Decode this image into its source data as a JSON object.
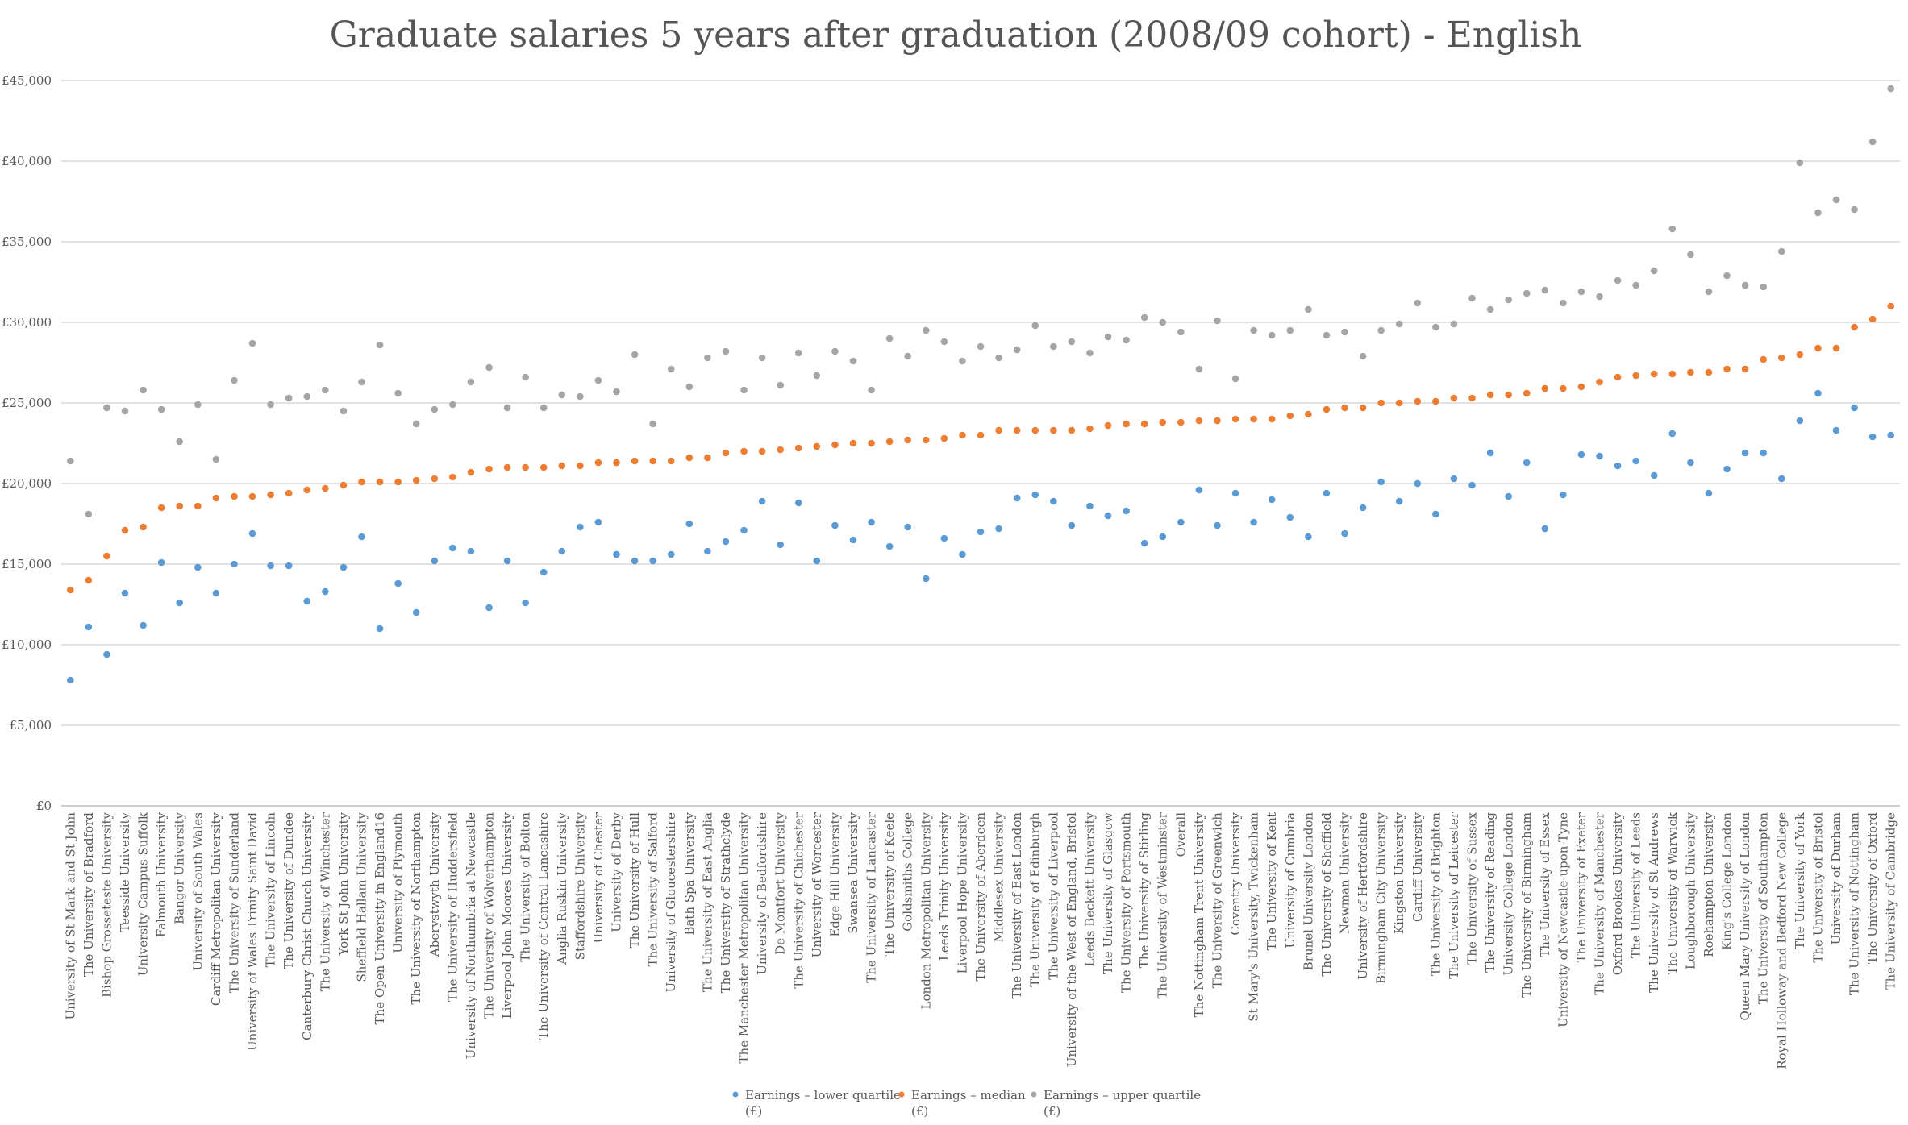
{
  "chart_data": {
    "type": "scatter",
    "title": "Graduate salaries 5 years after graduation (2008/09 cohort) - English",
    "xlabel": "",
    "ylabel": "",
    "ylim": [
      0,
      45000
    ],
    "yticks": [
      0,
      5000,
      10000,
      15000,
      20000,
      25000,
      30000,
      35000,
      40000,
      45000
    ],
    "ytick_labels": [
      "£0",
      "£5,000",
      "£10,000",
      "£15,000",
      "£20,000",
      "£25,000",
      "£30,000",
      "£35,000",
      "£40,000",
      "£45,000"
    ],
    "grid": true,
    "legend_position": "bottom-center",
    "categories": [
      "University of St Mark and St John",
      "The University of Bradford",
      "Bishop Grosseteste University",
      "Teesside University",
      "University Campus Suffolk",
      "Falmouth University",
      "Bangor University",
      "University of South Wales",
      "Cardiff Metropolitan University",
      "The University of Sunderland",
      "University of Wales Trinity Saint David",
      "The University of Lincoln",
      "The University of Dundee",
      "Canterbury Christ Church University",
      "The University of Winchester",
      "York St John University",
      "Sheffield Hallam University",
      "The Open University in England16",
      "University of Plymouth",
      "The University of Northampton",
      "Aberystwyth University",
      "The University of Huddersfield",
      "University of Northumbria at Newcastle",
      "The University of Wolverhampton",
      "Liverpool John Moores University",
      "The University of Bolton",
      "The University of Central Lancashire",
      "Anglia Ruskin University",
      "Staffordshire University",
      "University of Chester",
      "University of Derby",
      "The University of Hull",
      "The University of Salford",
      "University of Gloucestershire",
      "Bath Spa University",
      "The University of East Anglia",
      "The University of Strathclyde",
      "The Manchester Metropolitan University",
      "University of Bedfordshire",
      "De Montfort University",
      "The University of Chichester",
      "University of Worcester",
      "Edge Hill University",
      "Swansea University",
      "The University of Lancaster",
      "The University of Keele",
      "Goldsmiths College",
      "London Metropolitan University",
      "Leeds Trinity University",
      "Liverpool Hope University",
      "The University of Aberdeen",
      "Middlesex University",
      "The University of East London",
      "The University of Edinburgh",
      "The University of Liverpool",
      "University of the West of England, Bristol",
      "Leeds Beckett University",
      "The University of Glasgow",
      "The University of Portsmouth",
      "The University of Stirling",
      "The University of Westminster",
      "Overall",
      "The Nottingham Trent University",
      "The University of Greenwich",
      "Coventry University",
      "St Mary's University, Twickenham",
      "The University of Kent",
      "University of Cumbria",
      "Brunel University London",
      "The University of Sheffield",
      "Newman University",
      "University of Hertfordshire",
      "Birmingham City University",
      "Kingston University",
      "Cardiff University",
      "The University of Brighton",
      "The University of Leicester",
      "The University of Sussex",
      "The University of Reading",
      "University College London",
      "The University of Birmingham",
      "The University of Essex",
      "University of Newcastle-upon-Tyne",
      "The University of Exeter",
      "The University of Manchester",
      "Oxford Brookes University",
      "The University of Leeds",
      "The University of St Andrews",
      "The University of Warwick",
      "Loughborough University",
      "Roehampton University",
      "King's College London",
      "Queen Mary University of London",
      "The University of Southampton",
      "Royal Holloway and Bedford New College",
      "The University of York",
      "The University of Bristol",
      "University of Durham",
      "The University of Nottingham",
      "The University of Oxford",
      "The University of Cambridge"
    ],
    "series": [
      {
        "name": "Earnings – lower quartile (£)",
        "color": "#5B9BD5",
        "values": [
          7800,
          11100,
          9400,
          13200,
          11200,
          15100,
          12600,
          14800,
          13200,
          15000,
          16900,
          14900,
          14900,
          12700,
          13300,
          14800,
          16700,
          11000,
          13800,
          12000,
          15200,
          16000,
          15800,
          12300,
          15200,
          12600,
          14500,
          15800,
          17300,
          17600,
          15600,
          15200,
          15200,
          15600,
          17500,
          15800,
          16400,
          17100,
          18900,
          16200,
          18800,
          15200,
          17400,
          16500,
          17600,
          16100,
          17300,
          14100,
          16600,
          15600,
          17000,
          17200,
          19100,
          19300,
          18900,
          17400,
          18600,
          18000,
          18300,
          16300,
          16700,
          17600,
          19600,
          17400,
          19400,
          17600,
          19000,
          17900,
          16700,
          19400,
          16900,
          18500,
          20100,
          18900,
          20000,
          18100,
          20300,
          19900,
          21900,
          19200,
          21300,
          17200,
          19300,
          21800,
          21700,
          21100,
          21400,
          20500,
          23100,
          21300,
          19400,
          20900,
          21900,
          21900,
          20300,
          23900,
          25600,
          23300,
          24700,
          22900,
          23000
        ]
      },
      {
        "name": "Earnings – median (£)",
        "color": "#ED7D31",
        "values": [
          13400,
          14000,
          15500,
          17100,
          17300,
          18500,
          18600,
          18600,
          19100,
          19200,
          19200,
          19300,
          19400,
          19600,
          19700,
          19900,
          20100,
          20100,
          20100,
          20200,
          20300,
          20400,
          20700,
          20900,
          21000,
          21000,
          21000,
          21100,
          21100,
          21300,
          21300,
          21400,
          21400,
          21400,
          21600,
          21600,
          21900,
          22000,
          22000,
          22100,
          22200,
          22300,
          22400,
          22500,
          22500,
          22600,
          22700,
          22700,
          22800,
          23000,
          23000,
          23300,
          23300,
          23300,
          23300,
          23300,
          23400,
          23600,
          23700,
          23700,
          23800,
          23800,
          23900,
          23900,
          24000,
          24000,
          24000,
          24200,
          24300,
          24600,
          24700,
          24700,
          25000,
          25000,
          25100,
          25100,
          25300,
          25300,
          25500,
          25500,
          25600,
          25900,
          25900,
          26000,
          26300,
          26600,
          26700,
          26800,
          26800,
          26900,
          26900,
          27100,
          27100,
          27700,
          27800,
          28000,
          28400,
          28400,
          29700,
          30200,
          31000
        ]
      },
      {
        "name": "Earnings – upper quartile (£)",
        "color": "#A5A5A5",
        "values": [
          21400,
          18100,
          24700,
          24500,
          25800,
          24600,
          22600,
          24900,
          21500,
          26400,
          28700,
          24900,
          25300,
          25400,
          25800,
          24500,
          26300,
          28600,
          25600,
          23700,
          24600,
          24900,
          26300,
          27200,
          24700,
          26600,
          24700,
          25500,
          25400,
          26400,
          25700,
          28000,
          23700,
          27100,
          26000,
          27800,
          28200,
          25800,
          27800,
          26100,
          28100,
          26700,
          28200,
          27600,
          25800,
          29000,
          27900,
          29500,
          28800,
          27600,
          28500,
          27800,
          28300,
          29800,
          28500,
          28800,
          28100,
          29100,
          28900,
          30300,
          30000,
          29400,
          27100,
          30100,
          26500,
          29500,
          29200,
          29500,
          30800,
          29200,
          29400,
          27900,
          29500,
          29900,
          31200,
          29700,
          29900,
          31500,
          30800,
          31400,
          31800,
          32000,
          31200,
          31900,
          31600,
          32600,
          32300,
          33200,
          35800,
          34200,
          31900,
          32900,
          32300,
          32200,
          34400,
          39900,
          36800,
          37600,
          37000,
          41200,
          44500
        ]
      }
    ],
    "legend": [
      {
        "line1": "Earnings – lower quartile",
        "line2": "(£)",
        "color": "#5B9BD5"
      },
      {
        "line1": "Earnings – median",
        "line2": "(£)",
        "color": "#ED7D31"
      },
      {
        "line1": "Earnings – upper quartile",
        "line2": "(£)",
        "color": "#A5A5A5"
      }
    ]
  }
}
